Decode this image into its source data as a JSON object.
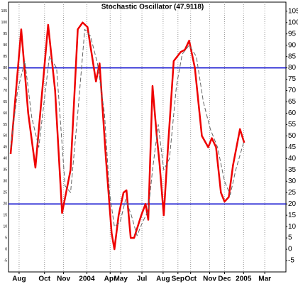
{
  "chart_data": {
    "type": "line",
    "title": "Stochastic Oscillator (47.9118)",
    "xlim": [
      0,
      131
    ],
    "ylim": [
      -10,
      109
    ],
    "xticks": [
      {
        "value": 5,
        "label": "Aug"
      },
      {
        "value": 17,
        "label": "Oct"
      },
      {
        "value": 26,
        "label": "Nov"
      },
      {
        "value": 37,
        "label": "2004"
      },
      {
        "value": 48,
        "label": "Apr"
      },
      {
        "value": 53,
        "label": "May"
      },
      {
        "value": 63,
        "label": "Jul"
      },
      {
        "value": 73,
        "label": "Aug"
      },
      {
        "value": 80,
        "label": "Sep"
      },
      {
        "value": 86,
        "label": "Oct"
      },
      {
        "value": 95,
        "label": "Nov"
      },
      {
        "value": 102,
        "label": "Dec"
      },
      {
        "value": 111,
        "label": "2005"
      },
      {
        "value": 121,
        "label": "Mar"
      }
    ],
    "yticks": [
      -5,
      0,
      5,
      10,
      15,
      20,
      25,
      30,
      35,
      40,
      45,
      50,
      55,
      60,
      65,
      70,
      75,
      80,
      85,
      90,
      95,
      100,
      105
    ],
    "grid": true,
    "reference_lines": [
      80,
      20
    ],
    "reference_color": "#0000cc",
    "series": [
      {
        "color": "#ee0000",
        "dashed": false,
        "x": [
          1,
          6,
          9.3,
          12.7,
          18.7,
          22,
          25.3,
          29.3,
          32.7,
          35,
          37.3,
          41.3,
          43,
          46,
          48.7,
          50,
          52,
          54.3,
          55.7,
          57.7,
          59.3,
          62.7,
          64.7,
          66,
          68,
          70,
          71.3,
          73.3,
          75.3,
          78,
          81.3,
          83.3,
          85.3,
          88,
          91.3,
          94.3,
          96,
          98,
          100.3,
          102,
          104,
          106,
          109.3,
          111.3
        ],
        "values": [
          42,
          97,
          60,
          36,
          99,
          70,
          16,
          35,
          97,
          100,
          98,
          74,
          82,
          40,
          7,
          0,
          15,
          25,
          26,
          5,
          5,
          15,
          20,
          13,
          72,
          50,
          38,
          15,
          45,
          83,
          87,
          88,
          92,
          80,
          50,
          45,
          49,
          45,
          25,
          21,
          23,
          37,
          53,
          47
        ]
      },
      {
        "color": "#666666",
        "dashed": true,
        "x": [
          1,
          4.3,
          7.7,
          11,
          14.3,
          19.3,
          22.7,
          26.7,
          29.3,
          32.7,
          36,
          38.7,
          42,
          45.3,
          47.7,
          50,
          52.7,
          55.3,
          58,
          60.7,
          63.3,
          66,
          68,
          70.7,
          73.3,
          76,
          79.3,
          82,
          85.3,
          88.7,
          92,
          95.3,
          98.7,
          102,
          104.7,
          107.3,
          111.3
        ],
        "values": [
          45,
          70,
          83,
          58,
          45,
          85,
          80,
          28,
          25,
          60,
          97,
          94,
          82,
          60,
          25,
          10,
          12,
          22,
          15,
          6,
          12,
          17,
          35,
          55,
          35,
          40,
          72,
          86,
          90,
          85,
          65,
          53,
          45,
          30,
          24,
          35,
          48
        ]
      }
    ]
  }
}
